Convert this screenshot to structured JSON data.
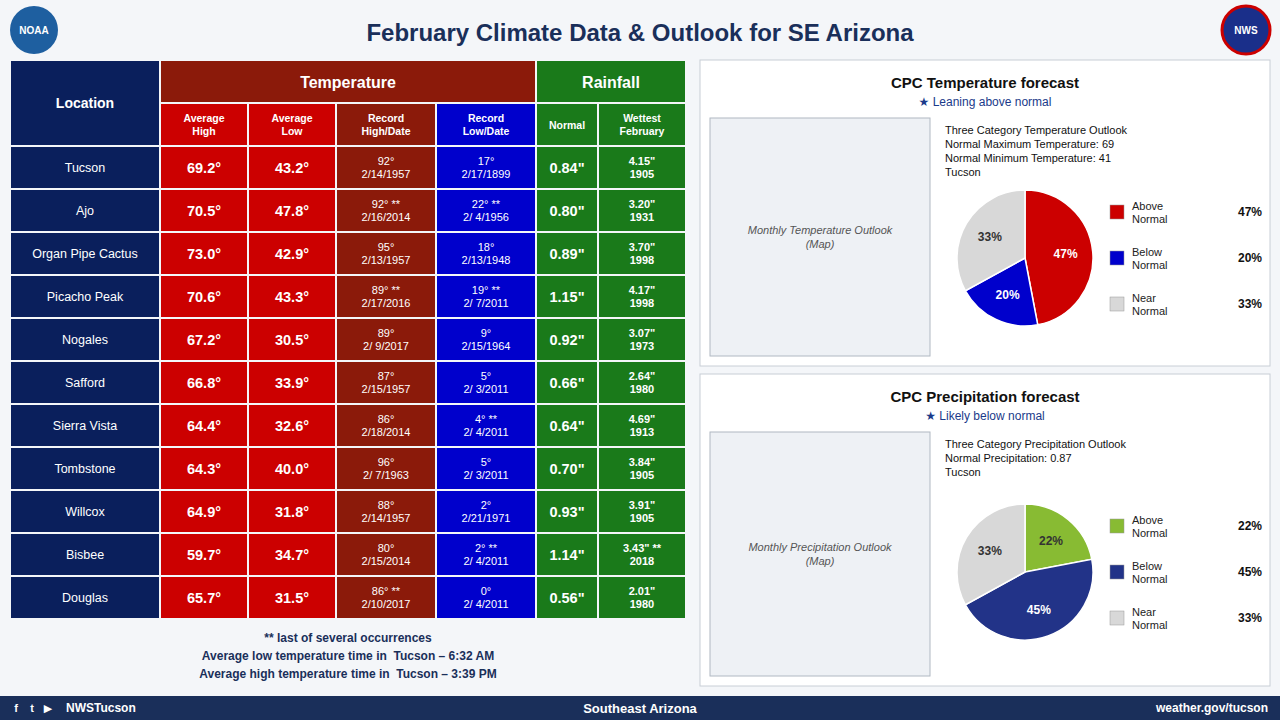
{
  "chart_data": [
    {
      "type": "table",
      "title": "February Climate Data & Outlook for SE Arizona",
      "category_label": "Location",
      "category_color": "#0a1f5c",
      "categories": [
        "Tucson",
        "Ajo",
        "Organ Pipe Cactus",
        "Picacho Peak",
        "Nogales",
        "Safford",
        "Sierra Vista",
        "Tombstone",
        "Willcox",
        "Bisbee",
        "Douglas"
      ],
      "groups": [
        {
          "name": "Temperature",
          "color": "#8b1a0a"
        },
        {
          "name": "Rainfall",
          "color": "#1a7a1a"
        }
      ],
      "series": [
        {
          "name": "Average\nHigh",
          "group": "Temperature",
          "color": "#cc0000",
          "values": [
            "69.2°",
            "70.5°",
            "73.0°",
            "70.6°",
            "67.2°",
            "66.8°",
            "64.4°",
            "64.3°",
            "64.9°",
            "59.7°",
            "65.7°"
          ]
        },
        {
          "name": "Average\nLow",
          "group": "Temperature",
          "color": "#cc0000",
          "values": [
            "43.2°",
            "47.8°",
            "42.9°",
            "43.3°",
            "30.5°",
            "33.9°",
            "32.6°",
            "40.0°",
            "31.8°",
            "34.7°",
            "31.5°"
          ]
        },
        {
          "name": "Record\nHigh/Date",
          "group": "Temperature",
          "color": "#8b1a0a",
          "values": [
            "92°\n2/14/1957",
            "92° **\n2/16/2014",
            "95°\n2/13/1957",
            "89° **\n2/17/2016",
            "89°\n2/ 9/2017",
            "87°\n2/15/1957",
            "86°\n2/18/2014",
            "96°\n2/ 7/1963",
            "88°\n2/14/1957",
            "80°\n2/15/2014",
            "86° **\n2/10/2017"
          ]
        },
        {
          "name": "Record\nLow/Date",
          "group": "Temperature",
          "color": "#0000cc",
          "values": [
            "17°\n2/17/1899",
            "22° **\n2/ 4/1956",
            "18°\n2/13/1948",
            "19° **\n2/ 7/2011",
            "9°\n2/15/1964",
            "5°\n2/ 3/2011",
            "4° **\n2/ 4/2011",
            "5°\n2/ 3/2011",
            "2°\n2/21/1971",
            "2° **\n2/ 4/2011",
            "0°\n2/ 4/2011"
          ]
        },
        {
          "name": "Normal",
          "group": "Rainfall",
          "color": "#1a7a1a",
          "values": [
            "0.84\"",
            "0.80\"",
            "0.89\"",
            "1.15\"",
            "0.92\"",
            "0.66\"",
            "0.64\"",
            "0.70\"",
            "0.93\"",
            "1.14\"",
            "0.56\""
          ]
        },
        {
          "name": "Wettest\nFebruary",
          "group": "Rainfall",
          "color": "#1a7a1a",
          "values": [
            "4.15\"\n1905",
            "3.20\"\n1931",
            "3.70\"\n1998",
            "4.17\"\n1998",
            "3.07\"\n1973",
            "2.64\"\n1980",
            "4.69\"\n1913",
            "3.84\"\n1905",
            "3.91\"\n1905",
            "3.43\" **\n2018",
            "2.01\"\n1980"
          ]
        }
      ],
      "annotations": [
        "** last of several occurrences",
        "Average low temperature time in  Tucson – 6:32 AM",
        "Average high temperature time in  Tucson – 3:39 PM",
        "NWSTucson",
        "Southeast Arizona",
        "weather.gov/tucson",
        "f",
        "t",
        "▶",
        "NOAA",
        "NWS"
      ]
    },
    {
      "type": "pie",
      "title": "Three Category Temperature Outlook\nNormal Maximum Temperature: 69\nNormal Minimum Temperature: 41\nTucson",
      "categories": [
        "Above\nNormal",
        "Below\nNormal",
        "Near\nNormal"
      ],
      "values": [
        47,
        20,
        33
      ],
      "value_labels": [
        "47%",
        "20%",
        "33%"
      ],
      "colors": [
        "#cc0000",
        "#0000cc",
        "#d8d8d8"
      ],
      "data_labels": true,
      "legend": "right",
      "annotations": [
        "CPC Temperature forecast",
        "★ Leaning above normal",
        "Monthly Temperature Outlook\n(Map)"
      ]
    },
    {
      "type": "pie",
      "title": "Three Category Precipitation Outlook\nNormal Precipitation: 0.87\nTucson",
      "categories": [
        "Above\nNormal",
        "Below\nNormal",
        "Near\nNormal"
      ],
      "values": [
        22,
        45,
        33
      ],
      "value_labels": [
        "22%",
        "45%",
        "33%"
      ],
      "colors": [
        "#88bb33",
        "#223388",
        "#d8d8d8"
      ],
      "data_labels": true,
      "legend": "right",
      "annotations": [
        "CPC Precipitation forecast",
        "★ Likely below normal",
        "Monthly Precipitation Outlook\n(Map)"
      ]
    }
  ]
}
